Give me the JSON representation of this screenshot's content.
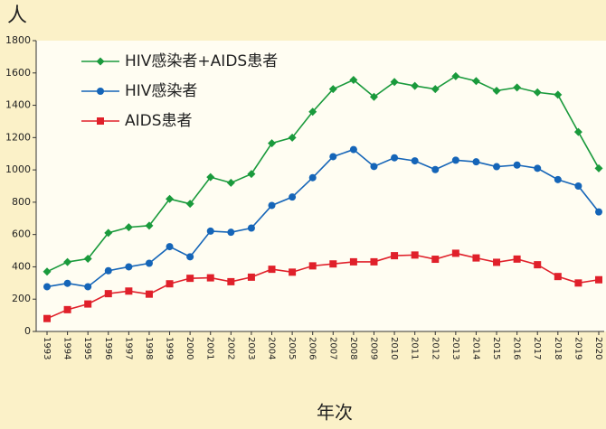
{
  "chart_data": {
    "type": "line",
    "y_label": "人",
    "x_label": "年次",
    "categories": [
      "1993",
      "1994",
      "1995",
      "1996",
      "1997",
      "1998",
      "1999",
      "2000",
      "2001",
      "2002",
      "2003",
      "2004",
      "2005",
      "2006",
      "2007",
      "2008",
      "2009",
      "2010",
      "2011",
      "2012",
      "2013",
      "2014",
      "2015",
      "2016",
      "2017",
      "2018",
      "2019",
      "2020"
    ],
    "series": [
      {
        "name": "HIV感染者+AIDS患者",
        "color": "#1a9a3c",
        "marker": "diamond",
        "values": [
          370,
          430,
          450,
          610,
          645,
          655,
          820,
          790,
          955,
          920,
          975,
          1165,
          1200,
          1360,
          1500,
          1557,
          1452,
          1544,
          1520,
          1500,
          1580,
          1550,
          1490,
          1510,
          1480,
          1465,
          1235,
          1010
        ]
      },
      {
        "name": "HIV感染者",
        "color": "#1565b8",
        "marker": "circle",
        "values": [
          277,
          298,
          277,
          376,
          400,
          422,
          525,
          462,
          621,
          614,
          640,
          780,
          832,
          952,
          1082,
          1126,
          1021,
          1075,
          1056,
          1002,
          1060,
          1050,
          1020,
          1030,
          1010,
          940,
          900,
          740
        ]
      },
      {
        "name": "AIDS患者",
        "color": "#e0202a",
        "marker": "square",
        "values": [
          80,
          135,
          170,
          234,
          250,
          231,
          295,
          329,
          332,
          308,
          336,
          385,
          367,
          406,
          418,
          431,
          431,
          469,
          473,
          447,
          484,
          455,
          428,
          448,
          413,
          340,
          300,
          320
        ]
      }
    ],
    "ylim": [
      0,
      1800
    ],
    "yticks": [
      0,
      200,
      400,
      600,
      800,
      1000,
      1200,
      1400,
      1600,
      1800
    ]
  }
}
